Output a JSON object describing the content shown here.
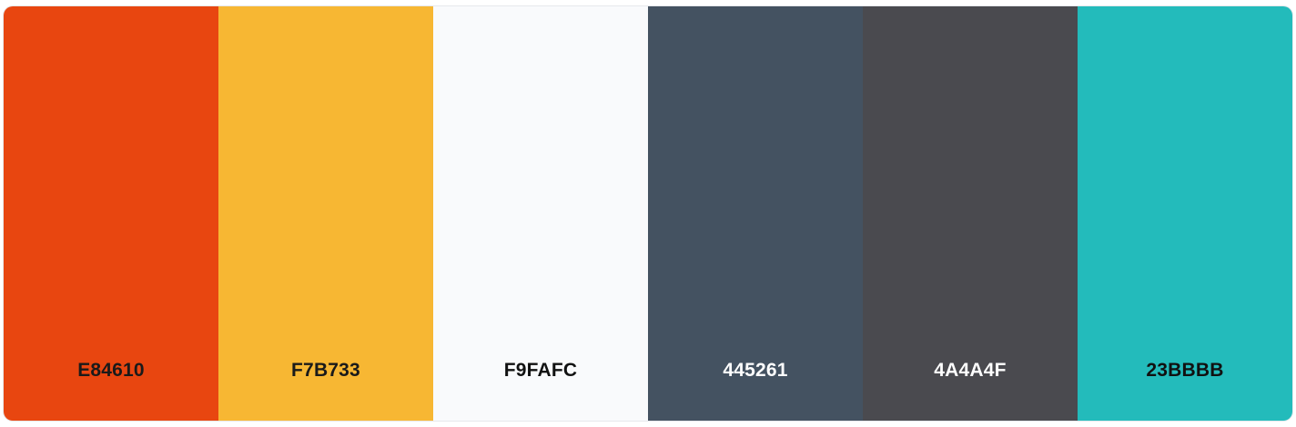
{
  "palette": {
    "colors": [
      {
        "hex": "E84610",
        "fill": "#E84610",
        "text_color": "#1a1a1a"
      },
      {
        "hex": "F7B733",
        "fill": "#F7B733",
        "text_color": "#1a1a1a"
      },
      {
        "hex": "F9FAFC",
        "fill": "#F9FAFC",
        "text_color": "#111111"
      },
      {
        "hex": "445261",
        "fill": "#445261",
        "text_color": "#ffffff"
      },
      {
        "hex": "4A4A4F",
        "fill": "#4A4A4F",
        "text_color": "#ffffff"
      },
      {
        "hex": "23BBBB",
        "fill": "#23BBBB",
        "text_color": "#111111"
      }
    ]
  }
}
